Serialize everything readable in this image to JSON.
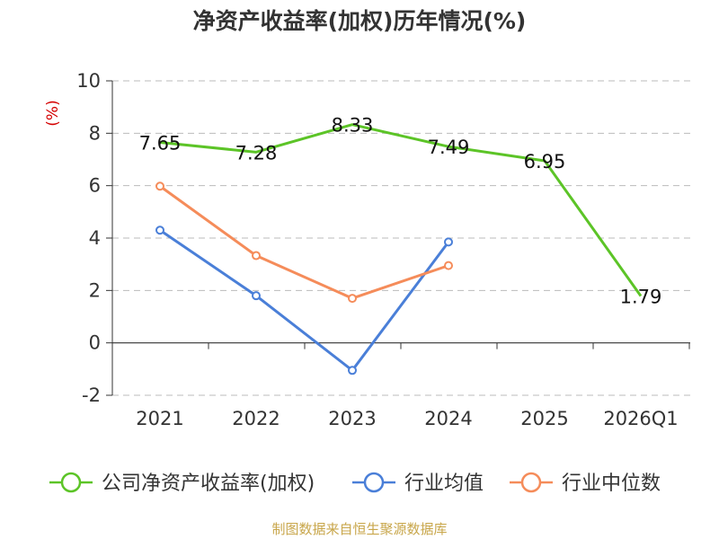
{
  "chart_data": {
    "type": "line",
    "title": "净资产收益率(加权)历年情况(%)",
    "ylabel": "(%)",
    "categories": [
      "2021",
      "2022",
      "2023",
      "2024",
      "2025",
      "2026Q1"
    ],
    "ylim": [
      -2,
      10
    ],
    "yticks": [
      "10",
      "8",
      "6",
      "4",
      "2",
      "0",
      "-2"
    ],
    "grid": true,
    "legend_position": "bottom",
    "series": [
      {
        "name": "公司净资产收益率(加权)",
        "color": "#5cc427",
        "values": [
          7.65,
          7.28,
          8.33,
          7.49,
          6.95,
          1.79
        ],
        "labels": [
          "7.65",
          "7.28",
          "8.33",
          "7.49",
          "6.95",
          "1.79"
        ],
        "show_labels": true
      },
      {
        "name": "行业均值",
        "color": "#4a7fd8",
        "values": [
          4.3,
          1.8,
          -1.05,
          3.85,
          null,
          null
        ],
        "show_labels": false
      },
      {
        "name": "行业中位数",
        "color": "#f58c5a",
        "values": [
          5.98,
          3.33,
          1.7,
          2.95,
          null,
          null
        ],
        "show_labels": false
      }
    ]
  },
  "source": "制图数据来自恒生聚源数据库",
  "colors": {
    "axis": "#333333",
    "grid": "#bbbbbb",
    "ylabel": "#d40000",
    "source": "#c8a64a"
  }
}
